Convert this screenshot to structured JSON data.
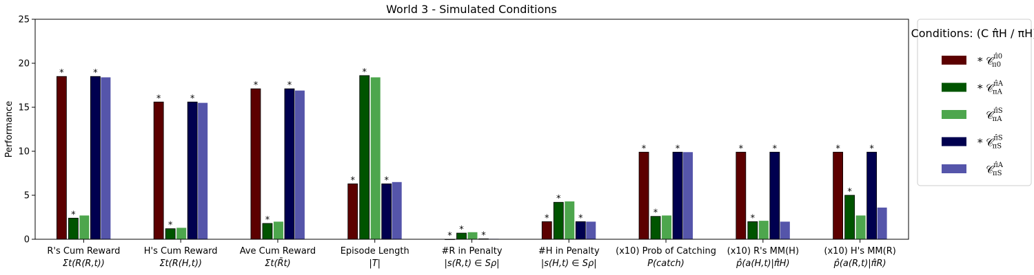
{
  "chart_data": {
    "type": "bar",
    "title": "World 3 - Simulated Conditions",
    "ylabel": "Performance",
    "ylim": [
      0,
      25
    ],
    "yticks": [
      0,
      5,
      10,
      15,
      20,
      25
    ],
    "categories": [
      {
        "line1": "R's Cum Reward",
        "line2": "Σt(R(R,t))"
      },
      {
        "line1": "H's Cum Reward",
        "line2": "Σt(R(H,t))"
      },
      {
        "line1": "Ave Cum Reward",
        "line2": "Σt(R̄t)"
      },
      {
        "line1": "Episode Length",
        "line2": "|T|"
      },
      {
        "line1": "#R in Penalty",
        "line2": "|s(R,t) ∈ Sρ|"
      },
      {
        "line1": "#H in Penalty",
        "line2": "|s(H,t) ∈ Sρ|"
      },
      {
        "line1": "(x10) Prob of Catching",
        "line2": "P(catch)"
      },
      {
        "line1": "(x10) R's MM(H)",
        "line2": "p̂(a(H,t)|π̂H)"
      },
      {
        "line1": "(x10) H's MM(R)",
        "line2": "p̂(a(R,t)|π̂R)"
      }
    ],
    "series": [
      {
        "name": "* C π̂0 / π0",
        "color": "#5c0000",
        "outlined": true,
        "values": [
          18.5,
          15.6,
          17.1,
          6.3,
          0.0,
          2.0,
          9.9,
          9.9,
          9.9
        ],
        "stars": [
          true,
          true,
          true,
          true,
          true,
          true,
          true,
          true,
          true
        ]
      },
      {
        "name": "* C π̂A / πA",
        "color": "#005400",
        "outlined": true,
        "values": [
          2.4,
          1.2,
          1.8,
          18.6,
          0.7,
          4.2,
          2.6,
          2.0,
          5.0
        ],
        "stars": [
          true,
          true,
          true,
          true,
          true,
          true,
          true,
          true,
          true
        ]
      },
      {
        "name": "C π̂S / πA",
        "color": "#4da64d",
        "outlined": false,
        "values": [
          2.7,
          1.3,
          2.0,
          18.4,
          0.8,
          4.3,
          2.7,
          2.1,
          2.7
        ],
        "stars": [
          false,
          false,
          false,
          false,
          false,
          false,
          false,
          false,
          false
        ]
      },
      {
        "name": "* C π̂S / πS",
        "color": "#00004f",
        "outlined": true,
        "values": [
          18.5,
          15.6,
          17.1,
          6.3,
          0.05,
          2.0,
          9.9,
          9.9,
          9.9
        ],
        "stars": [
          true,
          true,
          true,
          true,
          true,
          true,
          true,
          true,
          true
        ]
      },
      {
        "name": "C π̂A / πS",
        "color": "#5555aa",
        "outlined": false,
        "values": [
          18.4,
          15.5,
          16.9,
          6.5,
          0.05,
          2.0,
          9.9,
          2.0,
          3.6
        ],
        "stars": [
          false,
          false,
          false,
          false,
          false,
          false,
          false,
          false,
          false
        ]
      }
    ],
    "legend": {
      "title": "Conditions: (C π̂H / πH)",
      "position": "right",
      "entries": [
        {
          "star": "*",
          "sup": "π̂0",
          "sub": "π0"
        },
        {
          "star": "*",
          "sup": "π̂A",
          "sub": "πA"
        },
        {
          "star": "",
          "sup": "π̂S",
          "sub": "πA"
        },
        {
          "star": "*",
          "sup": "π̂S",
          "sub": "πS"
        },
        {
          "star": "",
          "sup": "π̂A",
          "sub": "πS"
        }
      ]
    }
  }
}
